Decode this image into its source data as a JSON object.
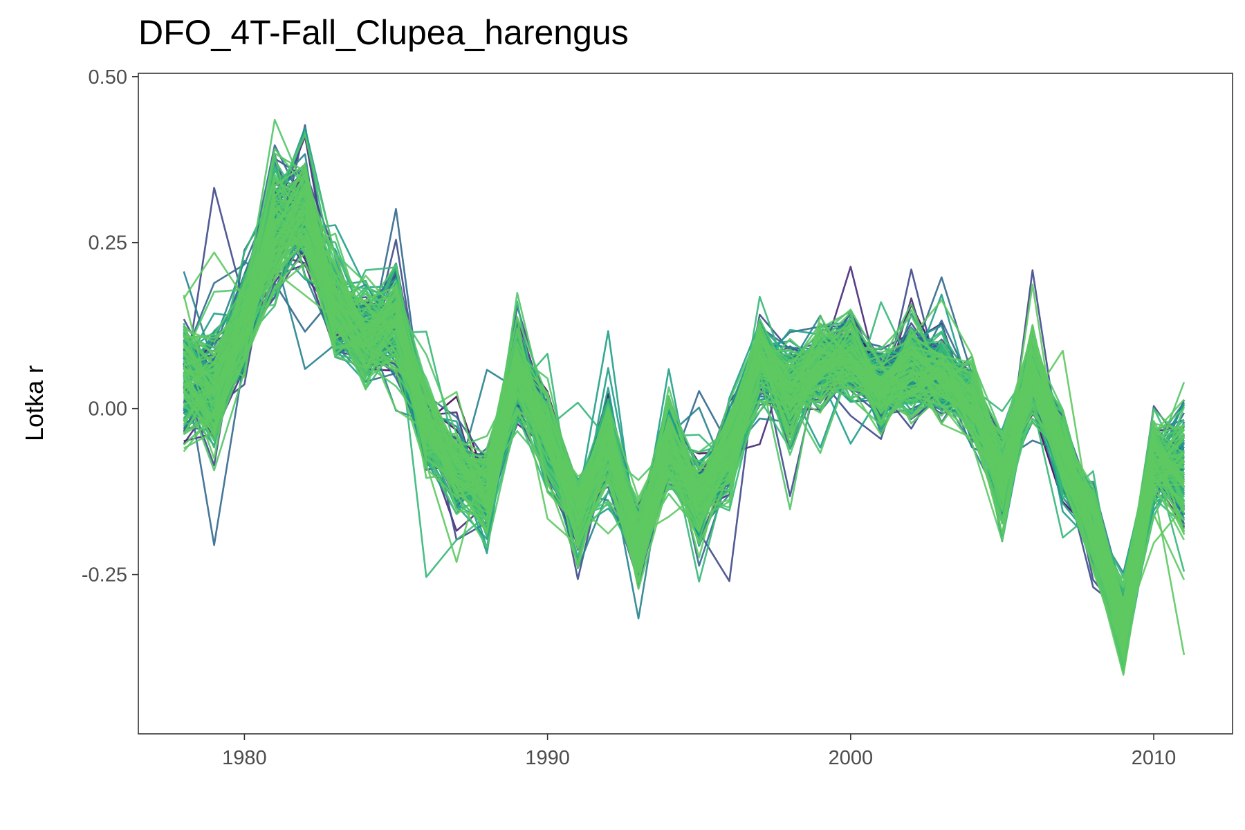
{
  "chart_data": {
    "type": "line",
    "title": "DFO_4T-Fall_Clupea_harengus",
    "xlabel": "",
    "ylabel": "Lotka r",
    "xlim": [
      1976.5,
      2012.6
    ],
    "ylim": [
      -0.49,
      0.505
    ],
    "x_ticks": [
      1980,
      1990,
      2000,
      2010
    ],
    "x_tick_labels": [
      "1980",
      "1990",
      "2000",
      "2010"
    ],
    "y_ticks": [
      0.5,
      0.25,
      0.0,
      -0.25
    ],
    "y_tick_labels": [
      "0.50",
      "0.25",
      "0.00",
      "-0.25"
    ],
    "grid": false,
    "legend": "none",
    "x": [
      1978,
      1979,
      1980,
      1981,
      1982,
      1983,
      1984,
      1985,
      1986,
      1987,
      1988,
      1989,
      1990,
      1991,
      1992,
      1993,
      1994,
      1995,
      1996,
      1997,
      1998,
      1999,
      2000,
      2001,
      2002,
      2003,
      2004,
      2005,
      2006,
      2007,
      2008,
      2009,
      2010,
      2011
    ],
    "central_trajectory": [
      0.05,
      0.03,
      0.14,
      0.27,
      0.3,
      0.15,
      0.11,
      0.13,
      -0.03,
      -0.09,
      -0.12,
      0.06,
      -0.04,
      -0.16,
      -0.05,
      -0.2,
      -0.05,
      -0.14,
      -0.06,
      0.08,
      0.03,
      0.07,
      0.08,
      0.03,
      0.06,
      0.05,
      0.01,
      -0.1,
      0.06,
      -0.07,
      -0.18,
      -0.33,
      -0.08,
      -0.09
    ],
    "band_half_width": [
      0.08,
      0.07,
      0.06,
      0.08,
      0.08,
      0.06,
      0.06,
      0.06,
      0.05,
      0.05,
      0.05,
      0.06,
      0.05,
      0.05,
      0.06,
      0.05,
      0.05,
      0.05,
      0.05,
      0.05,
      0.06,
      0.05,
      0.05,
      0.05,
      0.06,
      0.05,
      0.05,
      0.05,
      0.05,
      0.05,
      0.05,
      0.05,
      0.05,
      0.08
    ],
    "n_series": 220,
    "color_palette": [
      "#440154",
      "#482878",
      "#3e4989",
      "#31688e",
      "#26828e",
      "#1f9e89",
      "#35b779",
      "#52c569",
      "#5ec962"
    ]
  }
}
